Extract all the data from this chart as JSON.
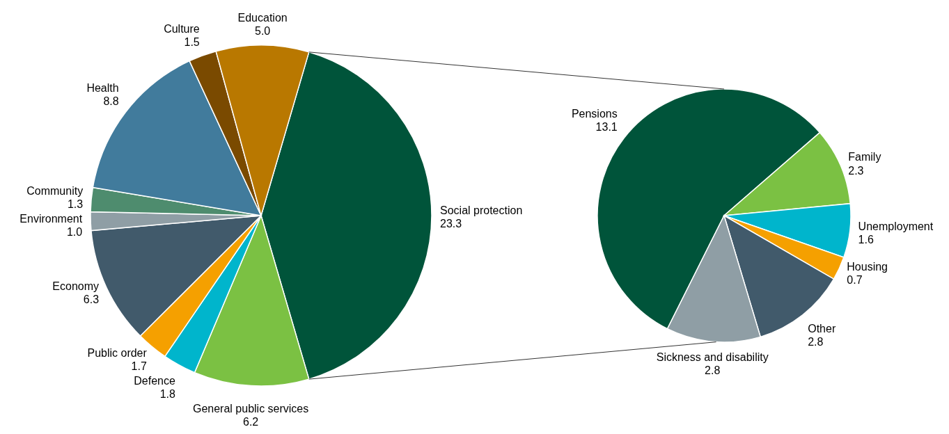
{
  "chart_data": [
    {
      "type": "pie",
      "categories": [
        "Social protection",
        "General public services",
        "Defence",
        "Public order",
        "Economy",
        "Environment",
        "Community",
        "Health",
        "Culture",
        "Education"
      ],
      "values": [
        23.3,
        6.2,
        1.8,
        1.7,
        6.3,
        1.0,
        1.3,
        8.8,
        1.5,
        5.0
      ],
      "value_labels": [
        "23.3",
        "6.2",
        "1.8",
        "1.7",
        "6.3",
        "1.0",
        "1.3",
        "8.8",
        "1.5",
        "5.0"
      ],
      "colors": [
        "#00543a",
        "#7bc143",
        "#00b5cc",
        "#f5a000",
        "#415a6b",
        "#8f9ea5",
        "#4e8c6e",
        "#417b9c",
        "#7a4a00",
        "#b97800"
      ]
    },
    {
      "type": "pie",
      "categories": [
        "Pensions",
        "Family",
        "Unemployment",
        "Housing",
        "Other",
        "Sickness and disability"
      ],
      "values": [
        13.1,
        2.3,
        1.6,
        0.7,
        2.8,
        2.8
      ],
      "value_labels": [
        "13.1",
        "2.3",
        "1.6",
        "0.7",
        "2.8",
        "2.8"
      ],
      "colors": [
        "#00543a",
        "#7bc143",
        "#00b5cc",
        "#f5a000",
        "#415a6b",
        "#8f9ea5"
      ]
    }
  ]
}
